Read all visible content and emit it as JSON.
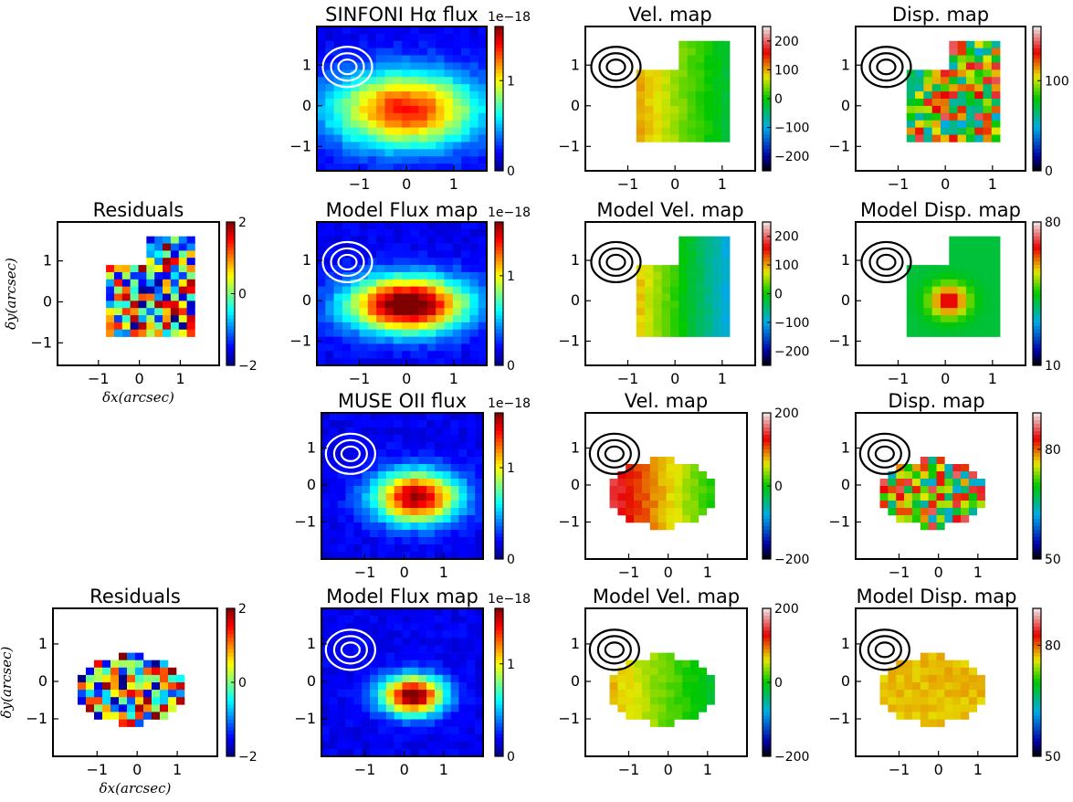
{
  "chart_data": [
    {
      "id": "p1",
      "type": "heatmap",
      "title": "SINFONI Hα flux",
      "xticks": [
        "−1",
        "0",
        "1"
      ],
      "yticks": [
        "1",
        "0",
        "−1"
      ],
      "colorbar": {
        "ticks": [
          "1",
          "0"
        ],
        "exponent": "1e−18",
        "range": [
          0,
          1.6
        ]
      },
      "contours": "white",
      "map": "blob",
      "blob": {
        "center": [
          0.1,
          0.35
        ],
        "peak": 1.2,
        "sigma": [
          0.5,
          0.3
        ]
      }
    },
    {
      "id": "p2",
      "type": "heatmap",
      "title": "Vel. map",
      "xticks": [
        "−1",
        "0",
        "1"
      ],
      "yticks": [
        "1",
        "0",
        "−1"
      ],
      "colorbar": {
        "ticks": [
          "200",
          "100",
          "0",
          "−100",
          "−200"
        ],
        "range": [
          -250,
          250
        ]
      },
      "contours": "black",
      "map": "velocity",
      "range": [
        -40,
        130
      ]
    },
    {
      "id": "p3",
      "type": "heatmap",
      "title": "Disp. map",
      "xticks": [
        "−1",
        "0",
        "1"
      ],
      "yticks": [
        "1",
        "0",
        "−1"
      ],
      "colorbar": {
        "ticks": [
          "100",
          "0"
        ],
        "range": [
          0,
          160
        ]
      },
      "contours": "black",
      "map": "dispersion"
    },
    {
      "id": "p4",
      "type": "heatmap",
      "title": "Residuals",
      "xticks": [
        "−1",
        "0",
        "1"
      ],
      "yticks": [
        "1",
        "0",
        "−1"
      ],
      "xlabel": "δx(arcsec)",
      "ylabel": "δy(arcsec)",
      "colorbar": {
        "ticks": [
          "2",
          "0",
          "−2"
        ],
        "range": [
          -2,
          2
        ]
      },
      "map": "residual"
    },
    {
      "id": "p5",
      "type": "heatmap",
      "title": "Model Flux map",
      "xticks": [
        "−1",
        "0",
        "1"
      ],
      "yticks": [
        "1",
        "0",
        "−1"
      ],
      "colorbar": {
        "ticks": [
          "1",
          "0"
        ],
        "exponent": "1e−18",
        "range": [
          0,
          1.6
        ]
      },
      "contours": "white",
      "map": "blob",
      "blob": {
        "center": [
          0.15,
          0.35
        ],
        "peak": 1.6,
        "sigma": [
          0.4,
          0.22
        ]
      }
    },
    {
      "id": "p6",
      "type": "heatmap",
      "title": "Model Vel. map",
      "xticks": [
        "−1",
        "0",
        "1"
      ],
      "yticks": [
        "1",
        "0",
        "−1"
      ],
      "colorbar": {
        "ticks": [
          "200",
          "100",
          "0",
          "−100",
          "−200"
        ],
        "range": [
          -250,
          250
        ]
      },
      "contours": "black",
      "map": "velocity",
      "range": [
        -120,
        130
      ]
    },
    {
      "id": "p7",
      "type": "heatmap",
      "title": "Model Disp. map",
      "xticks": [
        "−1",
        "0",
        "1"
      ],
      "yticks": [
        "1",
        "0",
        "−1"
      ],
      "colorbar": {
        "ticks": [
          "80",
          "10"
        ],
        "range": [
          10,
          80
        ]
      },
      "contours": "black",
      "map": "modeldisp"
    },
    {
      "id": "p8",
      "type": "heatmap",
      "title": "MUSE OII flux",
      "xticks": [
        "−1",
        "0",
        "1"
      ],
      "yticks": [
        "1",
        "0",
        "−1"
      ],
      "colorbar": {
        "ticks": [
          "1",
          "0"
        ],
        "exponent": "1e−18",
        "range": [
          0,
          1.6
        ]
      },
      "contours": "white",
      "map": "blob",
      "blob": {
        "center": [
          0.4,
          0.35
        ],
        "peak": 1.4,
        "sigma": [
          0.3,
          0.2
        ]
      }
    },
    {
      "id": "p9",
      "type": "heatmap",
      "title": "Vel. map",
      "xticks": [
        "−1",
        "0",
        "1"
      ],
      "yticks": [
        "1",
        "0",
        "−1"
      ],
      "colorbar": {
        "ticks": [
          "200",
          "0",
          "−200"
        ],
        "range": [
          -200,
          200
        ]
      },
      "contours": "black",
      "map": "velocity",
      "range": [
        -20,
        140
      ]
    },
    {
      "id": "p10",
      "type": "heatmap",
      "title": "Disp. map",
      "xticks": [
        "−1",
        "0",
        "1"
      ],
      "yticks": [
        "1",
        "0",
        "−1"
      ],
      "colorbar": {
        "ticks": [
          "80",
          "50"
        ],
        "range": [
          50,
          90
        ]
      },
      "contours": "black",
      "map": "dispersion2"
    },
    {
      "id": "p11",
      "type": "heatmap",
      "title": "Residuals",
      "xticks": [
        "−1",
        "0",
        "1"
      ],
      "yticks": [
        "1",
        "0",
        "−1"
      ],
      "xlabel": "δx(arcsec)",
      "ylabel": "δy(arcsec)",
      "colorbar": {
        "ticks": [
          "2",
          "0",
          "−2"
        ],
        "range": [
          -2,
          2
        ]
      },
      "map": "residual2"
    },
    {
      "id": "p12",
      "type": "heatmap",
      "title": "Model Flux map",
      "xticks": [
        "−1",
        "0",
        "1"
      ],
      "yticks": [
        "1",
        "0",
        "−1"
      ],
      "colorbar": {
        "ticks": [
          "1",
          "0"
        ],
        "exponent": "1e−18",
        "range": [
          0,
          1.6
        ]
      },
      "contours": "white",
      "map": "blob",
      "blob": {
        "center": [
          0.3,
          0.4
        ],
        "peak": 1.5,
        "sigma": [
          0.22,
          0.15
        ]
      }
    },
    {
      "id": "p13",
      "type": "heatmap",
      "title": "Model Vel. map",
      "xticks": [
        "−1",
        "0",
        "1"
      ],
      "yticks": [
        "1",
        "0",
        "−1"
      ],
      "colorbar": {
        "ticks": [
          "200",
          "0",
          "−200"
        ],
        "range": [
          -200,
          200
        ]
      },
      "contours": "black",
      "map": "velocity",
      "range": [
        -30,
        70
      ]
    },
    {
      "id": "p14",
      "type": "heatmap",
      "title": "Model Disp. map",
      "xticks": [
        "−1",
        "0",
        "1"
      ],
      "yticks": [
        "1",
        "0",
        "−1"
      ],
      "colorbar": {
        "ticks": [
          "80",
          "50"
        ],
        "range": [
          50,
          90
        ]
      },
      "contours": "black",
      "map": "flatdisp"
    }
  ]
}
